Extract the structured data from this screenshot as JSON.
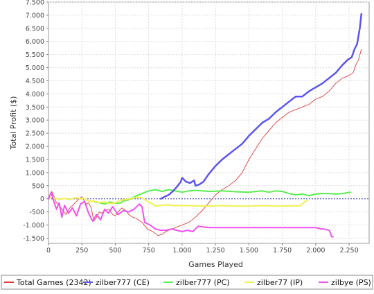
{
  "chart_data": {
    "type": "line",
    "title": "",
    "xlabel": "Games Played",
    "ylabel": "Total Profit ($)",
    "xlim": [
      0,
      2400
    ],
    "ylim": [
      -1700,
      7500
    ],
    "x_ticks": [
      0,
      250,
      500,
      750,
      1000,
      1250,
      1500,
      1750,
      2000,
      2250
    ],
    "x_tick_labels": [
      "0",
      "250",
      "500",
      "750",
      "1.000",
      "1.250",
      "1.500",
      "1.750",
      "2.000",
      "2.250"
    ],
    "y_ticks": [
      -1500,
      -1000,
      -500,
      0,
      500,
      1000,
      1500,
      2000,
      2500,
      3000,
      3500,
      4000,
      4500,
      5000,
      5500,
      6000,
      6500,
      7000,
      7500
    ],
    "y_tick_labels": [
      "-1.500",
      "-1.000",
      "-500",
      "0",
      "500",
      "1.000",
      "1.500",
      "2.000",
      "2.500",
      "3.000",
      "3.500",
      "4.000",
      "4.500",
      "5.000",
      "5.500",
      "6.000",
      "6.500",
      "7.000",
      "7.500"
    ],
    "grid": true,
    "zero_line": true,
    "legend_position": "bottom",
    "series": [
      {
        "name": "Total Games (2342)",
        "color": "#e03c3c",
        "stroke_width": 0.9,
        "x": [
          0,
          10,
          25,
          40,
          60,
          80,
          100,
          130,
          160,
          200,
          230,
          250,
          280,
          300,
          320,
          340,
          360,
          380,
          400,
          420,
          450,
          480,
          500,
          520,
          550,
          580,
          600,
          630,
          660,
          700,
          740,
          780,
          820,
          850,
          880,
          900,
          950,
          1000,
          1050,
          1100,
          1150,
          1200,
          1250,
          1300,
          1350,
          1400,
          1450,
          1500,
          1550,
          1600,
          1650,
          1700,
          1750,
          1800,
          1850,
          1900,
          1950,
          2000,
          2050,
          2100,
          2150,
          2200,
          2250,
          2280,
          2300,
          2320,
          2342
        ],
        "y": [
          0,
          150,
          280,
          100,
          -150,
          -250,
          -400,
          -600,
          -350,
          -150,
          0,
          80,
          -200,
          -150,
          -350,
          -850,
          -700,
          -500,
          -550,
          -450,
          -400,
          -600,
          -650,
          -500,
          -350,
          -450,
          -600,
          -700,
          -750,
          -900,
          -1150,
          -1250,
          -1400,
          -1350,
          -1250,
          -1200,
          -1100,
          -1000,
          -900,
          -700,
          -450,
          -150,
          150,
          350,
          500,
          700,
          1000,
          1500,
          1900,
          2300,
          2600,
          2900,
          3100,
          3300,
          3400,
          3500,
          3600,
          3800,
          3900,
          4100,
          4400,
          4600,
          4700,
          4800,
          5100,
          5300,
          5700
        ]
      },
      {
        "name": "zilber777 (CE)",
        "color": "#5a55f0",
        "stroke_width": 2.5,
        "x": [
          840,
          870,
          900,
          930,
          960,
          990,
          1000,
          1030,
          1060,
          1090,
          1100,
          1130,
          1160,
          1200,
          1250,
          1300,
          1350,
          1400,
          1450,
          1500,
          1550,
          1600,
          1650,
          1700,
          1750,
          1800,
          1850,
          1900,
          1950,
          2000,
          2050,
          2100,
          2150,
          2200,
          2240,
          2270,
          2290,
          2310,
          2330,
          2342
        ],
        "y": [
          0,
          80,
          150,
          280,
          450,
          650,
          800,
          650,
          600,
          700,
          500,
          550,
          650,
          950,
          1250,
          1500,
          1700,
          1900,
          2100,
          2400,
          2650,
          2900,
          3050,
          3300,
          3500,
          3700,
          3900,
          3900,
          4100,
          4250,
          4400,
          4600,
          4800,
          5100,
          5300,
          5400,
          5700,
          5900,
          6500,
          7050
        ]
      },
      {
        "name": "zilber777 (PC)",
        "color": "#5aee52",
        "stroke_width": 2.0,
        "x": [
          340,
          380,
          420,
          460,
          500,
          540,
          560,
          580,
          600,
          620,
          650,
          700,
          750,
          800,
          850,
          900,
          950,
          1000,
          1050,
          1100,
          1150,
          1200,
          1300,
          1400,
          1500,
          1550,
          1600,
          1650,
          1700,
          1750,
          1800,
          1850,
          1900,
          1950,
          2000,
          2050,
          2100,
          2150,
          2200,
          2260
        ],
        "y": [
          -100,
          -150,
          -200,
          -120,
          -170,
          -160,
          -80,
          -60,
          -40,
          0,
          100,
          200,
          300,
          350,
          280,
          350,
          300,
          250,
          300,
          320,
          300,
          280,
          300,
          270,
          250,
          280,
          300,
          250,
          300,
          280,
          200,
          150,
          180,
          120,
          180,
          200,
          200,
          180,
          200,
          250
        ]
      },
      {
        "name": "zilber77 (IP)",
        "color": "#f0f04e",
        "stroke_width": 2.0,
        "x": [
          0,
          20,
          40,
          80,
          120,
          160,
          200,
          240,
          270,
          290,
          320,
          340,
          380,
          420,
          460,
          500,
          540,
          580,
          620,
          660,
          700,
          740,
          760,
          780,
          800,
          840,
          880,
          920,
          960,
          1000,
          1100,
          1200,
          1300,
          1400,
          1500,
          1600,
          1700,
          1800,
          1880,
          1900,
          1920,
          1940
        ],
        "y": [
          0,
          60,
          30,
          -20,
          10,
          -30,
          40,
          0,
          20,
          -60,
          -100,
          -80,
          -150,
          -120,
          -180,
          -160,
          -50,
          -20,
          10,
          60,
          40,
          -100,
          -150,
          -200,
          -280,
          -250,
          -230,
          -250,
          -260,
          -250,
          -270,
          -280,
          -260,
          -280,
          -280,
          -260,
          -280,
          -270,
          -270,
          -200,
          -100,
          -60
        ]
      },
      {
        "name": "zilbye (PS)",
        "color": "#f050f0",
        "stroke_width": 2.0,
        "x": [
          0,
          20,
          40,
          60,
          80,
          100,
          120,
          150,
          180,
          210,
          240,
          270,
          300,
          330,
          360,
          390,
          420,
          450,
          480,
          520,
          560,
          600,
          640,
          680,
          700,
          720,
          760,
          800,
          840,
          880,
          920,
          960,
          1000,
          1040,
          1080,
          1100,
          1120,
          1200,
          1300,
          1400,
          1500,
          1600,
          1700,
          1800,
          1900,
          2000,
          2040,
          2060,
          2100,
          2110,
          2120,
          2130
        ],
        "y": [
          0,
          250,
          -100,
          -400,
          -150,
          -700,
          -250,
          -550,
          -350,
          -650,
          -200,
          -100,
          -550,
          -850,
          -600,
          -800,
          -400,
          -550,
          -300,
          -600,
          -450,
          -500,
          -400,
          -200,
          -300,
          -900,
          -1000,
          -1150,
          -1200,
          -1200,
          -1150,
          -1200,
          -1250,
          -1200,
          -1250,
          -1150,
          -1050,
          -1100,
          -1100,
          -1100,
          -1100,
          -1100,
          -1100,
          -1100,
          -1100,
          -1100,
          -1150,
          -1150,
          -1200,
          -1300,
          -1450,
          -1450
        ]
      }
    ]
  }
}
